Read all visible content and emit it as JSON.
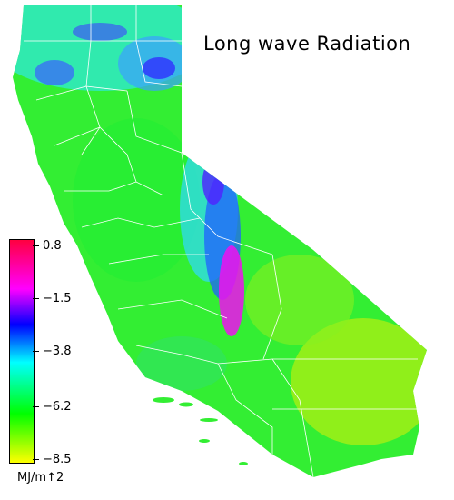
{
  "title": "Long wave Radiation",
  "legend": {
    "units": "MJ/m↑2",
    "ticks": [
      {
        "label": "0.8",
        "value": 0.8
      },
      {
        "label": "−1.5",
        "value": -1.5
      },
      {
        "label": "−3.8",
        "value": -3.8
      },
      {
        "label": "−6.2",
        "value": -6.2
      },
      {
        "label": "−8.5",
        "value": -8.5
      }
    ],
    "range": [
      -8.5,
      0.8
    ],
    "colorscale": [
      "#ffff00",
      "#00ff00",
      "#00ffff",
      "#0000ff",
      "#ff00ff",
      "#ff0040"
    ]
  },
  "map": {
    "region": "California",
    "background": "#ffffff",
    "boundary_color": "#ffffff"
  }
}
